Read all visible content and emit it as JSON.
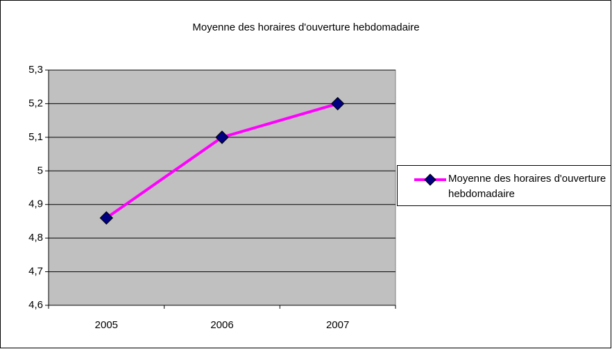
{
  "chart_data": {
    "type": "line",
    "title": "Moyenne des horaires d'ouverture hebdomadaire",
    "categories": [
      "2005",
      "2006",
      "2007"
    ],
    "series": [
      {
        "name": "Moyenne des horaires d'ouverture hebdomadaire",
        "color": "#ff00ff",
        "marker_color": "#000080",
        "values": [
          4.86,
          5.1,
          5.2
        ]
      }
    ],
    "ylim": [
      4.6,
      5.3
    ],
    "yticks": [
      {
        "value": 4.6,
        "label": "4,6"
      },
      {
        "value": 4.7,
        "label": "4,7"
      },
      {
        "value": 4.8,
        "label": "4,8"
      },
      {
        "value": 4.9,
        "label": "4,9"
      },
      5,
      {
        "value": 5.1,
        "label": "5,1"
      },
      {
        "value": 5.2,
        "label": "5,2"
      },
      {
        "value": 5.3,
        "label": "5,3"
      }
    ],
    "grid": true,
    "legend": "right",
    "plot_background": "#c0c0c0"
  }
}
